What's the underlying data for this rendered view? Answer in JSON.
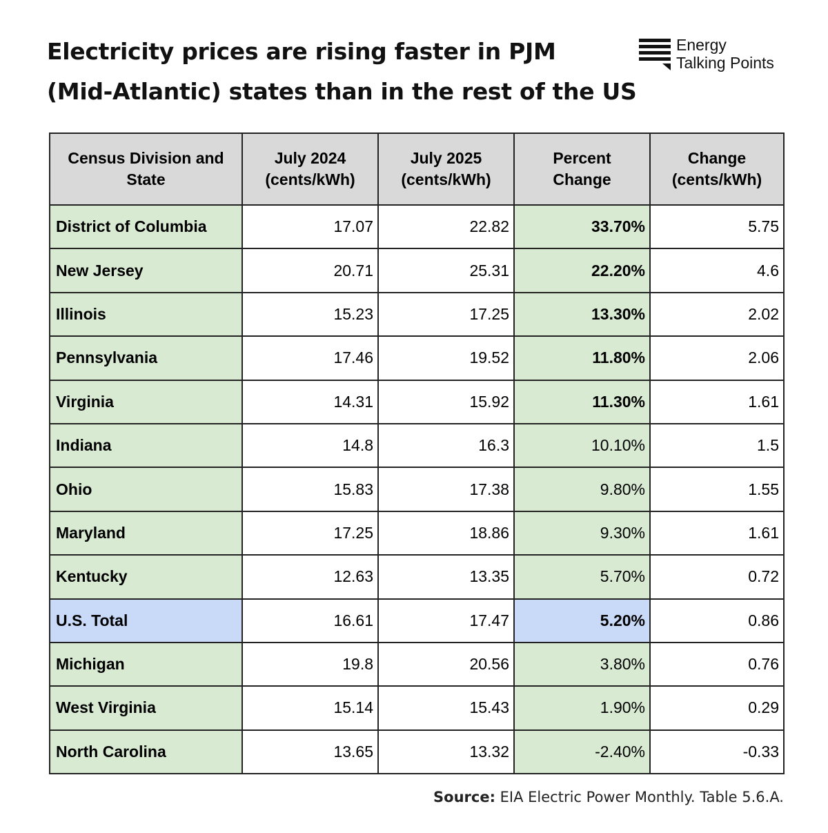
{
  "title": {
    "line1": "Electricity prices are rising faster in PJM",
    "line2": "(Mid-Atlantic) states than in the rest of the US"
  },
  "logo": {
    "icon": "flag-lines-icon",
    "line1": "Energy",
    "line2": "Talking Points"
  },
  "source": {
    "label": "Source:",
    "text": " EIA Electric Power Monthly. Table 5.6.A."
  },
  "colors": {
    "green_highlight": "#d9ead3",
    "blue_highlight": "#c9daf8",
    "header_gray": "#d9d9d9"
  },
  "chart_data": {
    "type": "table",
    "title": "Electricity prices are rising faster in PJM (Mid-Atlantic) states than in the rest of the US",
    "columns": [
      [
        "Census Division and",
        "State"
      ],
      [
        "July 2024",
        "(cents/kWh)"
      ],
      [
        "July 2025",
        "(cents/kWh)"
      ],
      [
        "Percent",
        "Change"
      ],
      [
        "Change",
        "(cents/kWh)"
      ]
    ],
    "rows": [
      {
        "state": "District of Columbia",
        "jul2024": "17.07",
        "jul2025": "22.82",
        "pct": "33.70%",
        "change": "5.75",
        "bold": true,
        "total": false
      },
      {
        "state": "New Jersey",
        "jul2024": "20.71",
        "jul2025": "25.31",
        "pct": "22.20%",
        "change": "4.6",
        "bold": true,
        "total": false
      },
      {
        "state": "Illinois",
        "jul2024": "15.23",
        "jul2025": "17.25",
        "pct": "13.30%",
        "change": "2.02",
        "bold": true,
        "total": false
      },
      {
        "state": "Pennsylvania",
        "jul2024": "17.46",
        "jul2025": "19.52",
        "pct": "11.80%",
        "change": "2.06",
        "bold": true,
        "total": false
      },
      {
        "state": "Virginia",
        "jul2024": "14.31",
        "jul2025": "15.92",
        "pct": "11.30%",
        "change": "1.61",
        "bold": true,
        "total": false
      },
      {
        "state": "Indiana",
        "jul2024": "14.8",
        "jul2025": "16.3",
        "pct": "10.10%",
        "change": "1.5",
        "bold": false,
        "total": false
      },
      {
        "state": "Ohio",
        "jul2024": "15.83",
        "jul2025": "17.38",
        "pct": "9.80%",
        "change": "1.55",
        "bold": false,
        "total": false
      },
      {
        "state": "Maryland",
        "jul2024": "17.25",
        "jul2025": "18.86",
        "pct": "9.30%",
        "change": "1.61",
        "bold": false,
        "total": false
      },
      {
        "state": "Kentucky",
        "jul2024": "12.63",
        "jul2025": "13.35",
        "pct": "5.70%",
        "change": "0.72",
        "bold": false,
        "total": false
      },
      {
        "state": "U.S. Total",
        "jul2024": "16.61",
        "jul2025": "17.47",
        "pct": "5.20%",
        "change": "0.86",
        "bold": true,
        "total": true
      },
      {
        "state": "Michigan",
        "jul2024": "19.8",
        "jul2025": "20.56",
        "pct": "3.80%",
        "change": "0.76",
        "bold": false,
        "total": false
      },
      {
        "state": "West Virginia",
        "jul2024": "15.14",
        "jul2025": "15.43",
        "pct": "1.90%",
        "change": "0.29",
        "bold": false,
        "total": false
      },
      {
        "state": "North Carolina",
        "jul2024": "13.65",
        "jul2025": "13.32",
        "pct": "-2.40%",
        "change": "-0.33",
        "bold": false,
        "total": false
      }
    ]
  }
}
